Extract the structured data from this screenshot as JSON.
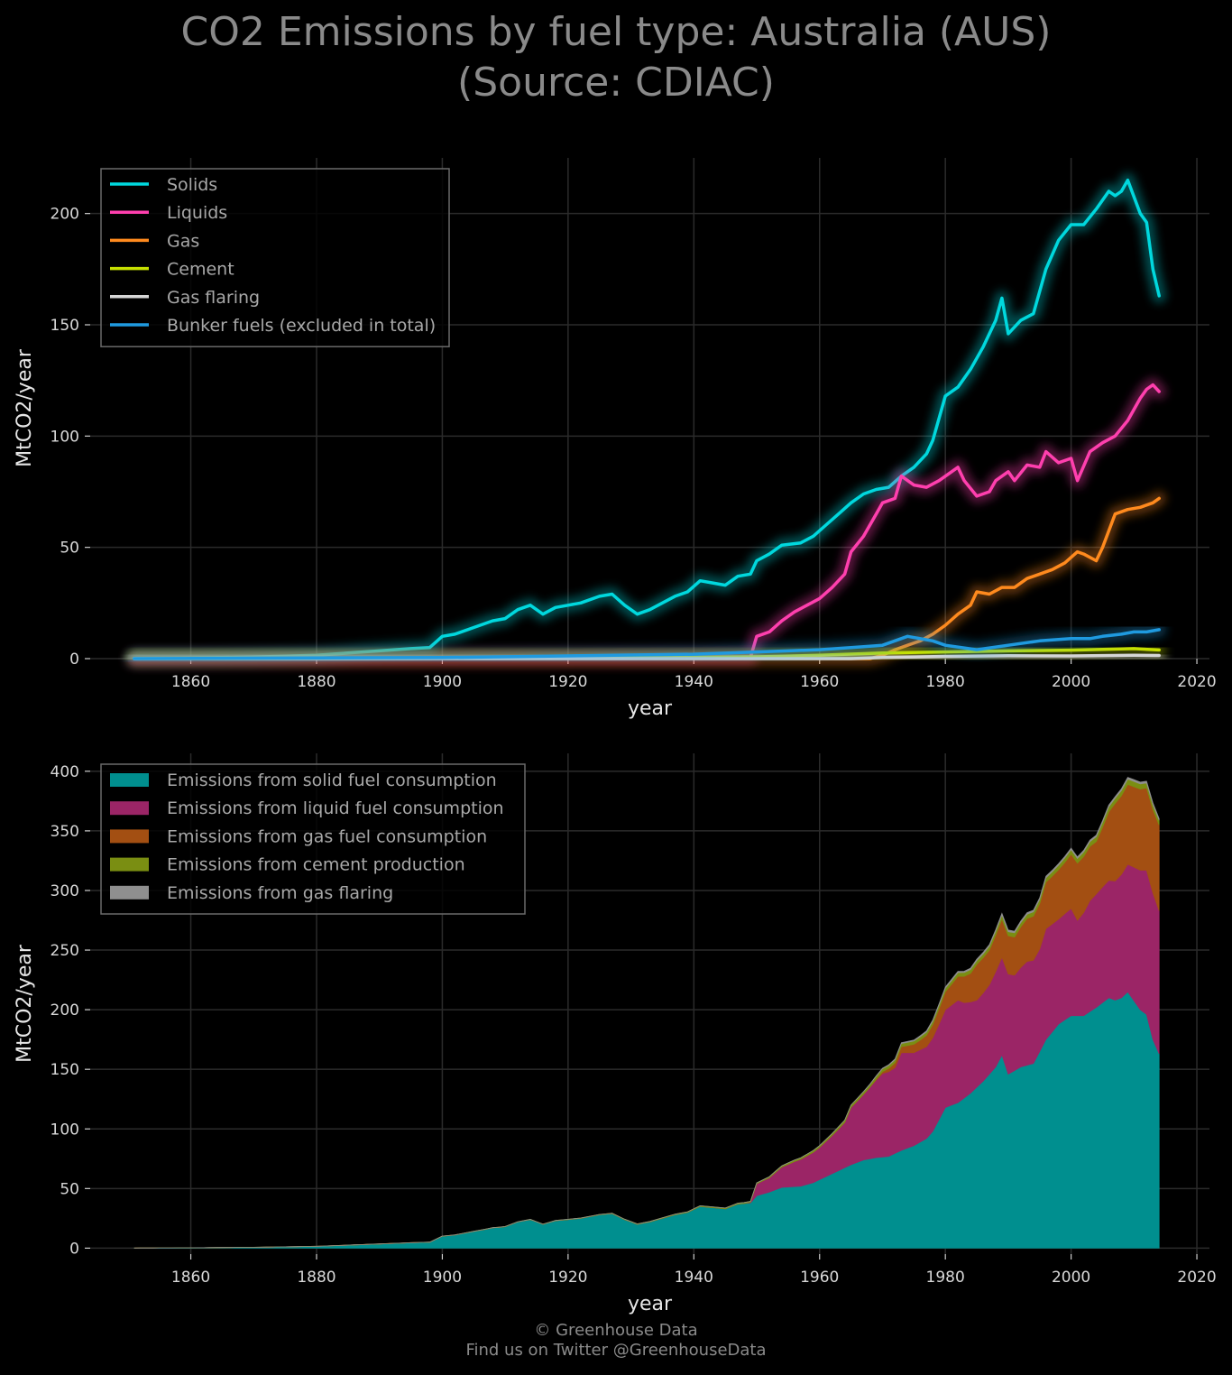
{
  "title": {
    "line1": "CO2 Emissions by fuel type: Australia (AUS)",
    "line2": "(Source: CDIAC)"
  },
  "footer": {
    "line1": "© Greenhouse Data",
    "line2": "Find us on Twitter @GreenhouseData"
  },
  "colors": {
    "background": "#000000",
    "grid": "#2b2b2b",
    "solids": "#00d8de",
    "liquids": "#ff3fae",
    "gas": "#ff8a1e",
    "cement": "#c6e000",
    "flaring": "#d6d6d6",
    "bunker": "#1f9ae0",
    "area_solids": "#008f8f",
    "area_liquids": "#9b2566",
    "area_gas": "#a34f12",
    "area_cement": "#7a8e12",
    "area_flaring": "#8f8f8f"
  },
  "chart_data": [
    {
      "type": "line",
      "title": "CO2 Emissions by fuel type: Australia (AUS) (Source: CDIAC)",
      "xlabel": "year",
      "ylabel": "MtCO2/year",
      "xlim": [
        1844,
        2022
      ],
      "ylim": [
        0,
        225
      ],
      "xticks": [
        1860,
        1880,
        1900,
        1920,
        1940,
        1960,
        1980,
        2000,
        2020
      ],
      "yticks": [
        0,
        50,
        100,
        150,
        200
      ],
      "grid": true,
      "legend_position": "top-left",
      "series": [
        {
          "name": "Solids",
          "color": "#00d8de",
          "x": [
            1851,
            1860,
            1870,
            1880,
            1885,
            1890,
            1895,
            1898,
            1900,
            1902,
            1905,
            1908,
            1910,
            1912,
            1914,
            1916,
            1918,
            1920,
            1922,
            1925,
            1927,
            1929,
            1931,
            1933,
            1935,
            1937,
            1939,
            1941,
            1943,
            1945,
            1947,
            1949,
            1950,
            1952,
            1954,
            1957,
            1959,
            1961,
            1963,
            1965,
            1967,
            1969,
            1971,
            1973,
            1975,
            1977,
            1978,
            1980,
            1982,
            1984,
            1986,
            1988,
            1989,
            1990,
            1992,
            1994,
            1996,
            1998,
            2000,
            2002,
            2004,
            2006,
            2007,
            2008,
            2009,
            2011,
            2012,
            2013,
            2014
          ],
          "y": [
            0.1,
            0.3,
            0.7,
            1.5,
            2.5,
            3.5,
            4.5,
            5,
            10,
            11,
            14,
            17,
            18,
            22,
            24,
            20,
            23,
            24,
            25,
            28,
            29,
            24,
            20,
            22,
            25,
            28,
            30,
            35,
            34,
            33,
            37,
            38,
            44,
            47,
            51,
            52,
            55,
            60,
            65,
            70,
            74,
            76,
            77,
            82,
            86,
            92,
            98,
            118,
            122,
            130,
            140,
            152,
            162,
            146,
            152,
            155,
            175,
            188,
            195,
            195,
            202,
            210,
            208,
            210,
            215,
            200,
            196,
            175,
            163
          ]
        },
        {
          "name": "Liquids",
          "color": "#ff3fae",
          "x": [
            1949,
            1950,
            1952,
            1954,
            1956,
            1958,
            1960,
            1962,
            1964,
            1965,
            1967,
            1969,
            1970,
            1972,
            1973,
            1975,
            1977,
            1979,
            1981,
            1982,
            1983,
            1985,
            1987,
            1988,
            1990,
            1991,
            1993,
            1995,
            1996,
            1998,
            2000,
            2001,
            2003,
            2005,
            2007,
            2009,
            2011,
            2012,
            2013,
            2014
          ],
          "y": [
            0.5,
            10,
            12,
            17,
            21,
            24,
            27,
            32,
            38,
            48,
            55,
            65,
            70,
            72,
            82,
            78,
            77,
            80,
            84,
            86,
            80,
            73,
            75,
            80,
            84,
            80,
            87,
            86,
            93,
            88,
            90,
            80,
            93,
            97,
            100,
            107,
            117,
            121,
            123,
            120
          ]
        },
        {
          "name": "Gas",
          "color": "#ff8a1e",
          "x": [
            1968,
            1970,
            1972,
            1974,
            1976,
            1978,
            1980,
            1982,
            1984,
            1985,
            1987,
            1989,
            1991,
            1993,
            1995,
            1997,
            1999,
            2001,
            2002,
            2004,
            2005,
            2007,
            2009,
            2011,
            2013,
            2014
          ],
          "y": [
            0,
            1.5,
            4,
            6,
            8,
            11,
            15,
            20,
            24,
            30,
            29,
            32,
            32,
            36,
            38,
            40,
            43,
            48,
            47,
            44,
            50,
            65,
            67,
            68,
            70,
            72
          ]
        },
        {
          "name": "Cement",
          "color": "#c6e000",
          "x": [
            1851,
            1900,
            1930,
            1950,
            1960,
            1970,
            1980,
            1990,
            2000,
            2010,
            2014
          ],
          "y": [
            0,
            0.1,
            0.3,
            0.8,
            1.5,
            2.5,
            3,
            3.5,
            3.8,
            4.5,
            3.9
          ]
        },
        {
          "name": "Gas flaring",
          "color": "#d6d6d6",
          "x": [
            1851,
            1965,
            1970,
            1980,
            1990,
            2000,
            2010,
            2014
          ],
          "y": [
            0,
            0,
            0.5,
            1,
            1.3,
            1.2,
            1.5,
            1.4
          ]
        },
        {
          "name": "Bunker fuels (excluded in total)",
          "color": "#1f9ae0",
          "x": [
            1851,
            1900,
            1940,
            1950,
            1955,
            1960,
            1965,
            1970,
            1974,
            1978,
            1980,
            1985,
            1990,
            1995,
            2000,
            2003,
            2005,
            2008,
            2010,
            2012,
            2014
          ],
          "y": [
            0,
            0.5,
            2,
            3,
            3.5,
            4,
            5,
            6,
            10,
            8,
            6,
            4,
            6,
            8,
            9,
            9,
            10,
            11,
            12,
            12,
            13
          ]
        }
      ]
    },
    {
      "type": "area",
      "title": "",
      "xlabel": "year",
      "ylabel": "MtCO2/year",
      "xlim": [
        1844,
        2022
      ],
      "ylim": [
        -5,
        415
      ],
      "xticks": [
        1860,
        1880,
        1900,
        1920,
        1940,
        1960,
        1980,
        2000,
        2020
      ],
      "yticks": [
        0,
        50,
        100,
        150,
        200,
        250,
        300,
        350,
        400
      ],
      "grid": true,
      "stacked": true,
      "legend_position": "top-left",
      "series": [
        {
          "name": "Emissions from solid fuel consumption",
          "color": "#008f8f",
          "ref": "Solids"
        },
        {
          "name": "Emissions from liquid fuel consumption",
          "color": "#9b2566",
          "ref": "Liquids"
        },
        {
          "name": "Emissions from gas fuel consumption",
          "color": "#a34f12",
          "ref": "Gas"
        },
        {
          "name": "Emissions from cement production",
          "color": "#7a8e12",
          "ref": "Cement"
        },
        {
          "name": "Emissions from gas flaring",
          "color": "#8f8f8f",
          "ref": "Gas flaring"
        }
      ]
    }
  ]
}
